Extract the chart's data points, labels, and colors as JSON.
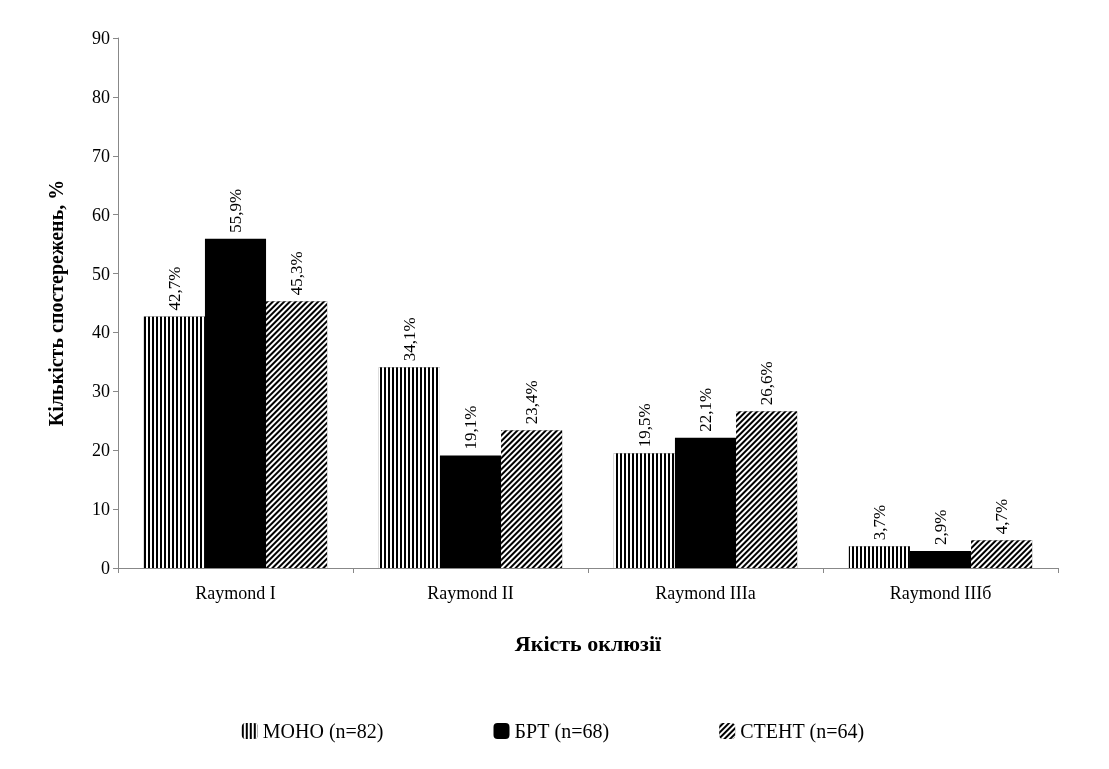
{
  "chart_data": {
    "type": "bar",
    "xlabel": "Якість оклюзії",
    "ylabel": "Кількість спостережень, %",
    "categories": [
      "Raymond I",
      "Raymond II",
      "Raymond IIIa",
      "Raymond IIIб"
    ],
    "series": [
      {
        "name": "МОНО (n=82)",
        "color": "#000000",
        "values": [
          42.7,
          34.1,
          19.5,
          3.7
        ],
        "value_labels": [
          "42,7%",
          "34,1%",
          "19,5%",
          "3,7%"
        ]
      },
      {
        "name": "БРТ (n=68)",
        "color": "#000000",
        "values": [
          55.9,
          19.1,
          22.1,
          2.9
        ],
        "value_labels": [
          "55,9%",
          "19,1%",
          "22,1%",
          "2,9%"
        ]
      },
      {
        "name": "СТЕНТ (n=64)",
        "color": "#000000",
        "values": [
          45.3,
          23.4,
          26.6,
          4.7
        ],
        "value_labels": [
          "45,3%",
          "23,4%",
          "26,6%",
          "4,7%"
        ]
      }
    ],
    "ylim": [
      0,
      90
    ],
    "yticks": [
      0,
      10,
      20,
      30,
      40,
      50,
      60,
      70,
      80,
      90
    ],
    "grid": false,
    "legend": "bottom"
  }
}
